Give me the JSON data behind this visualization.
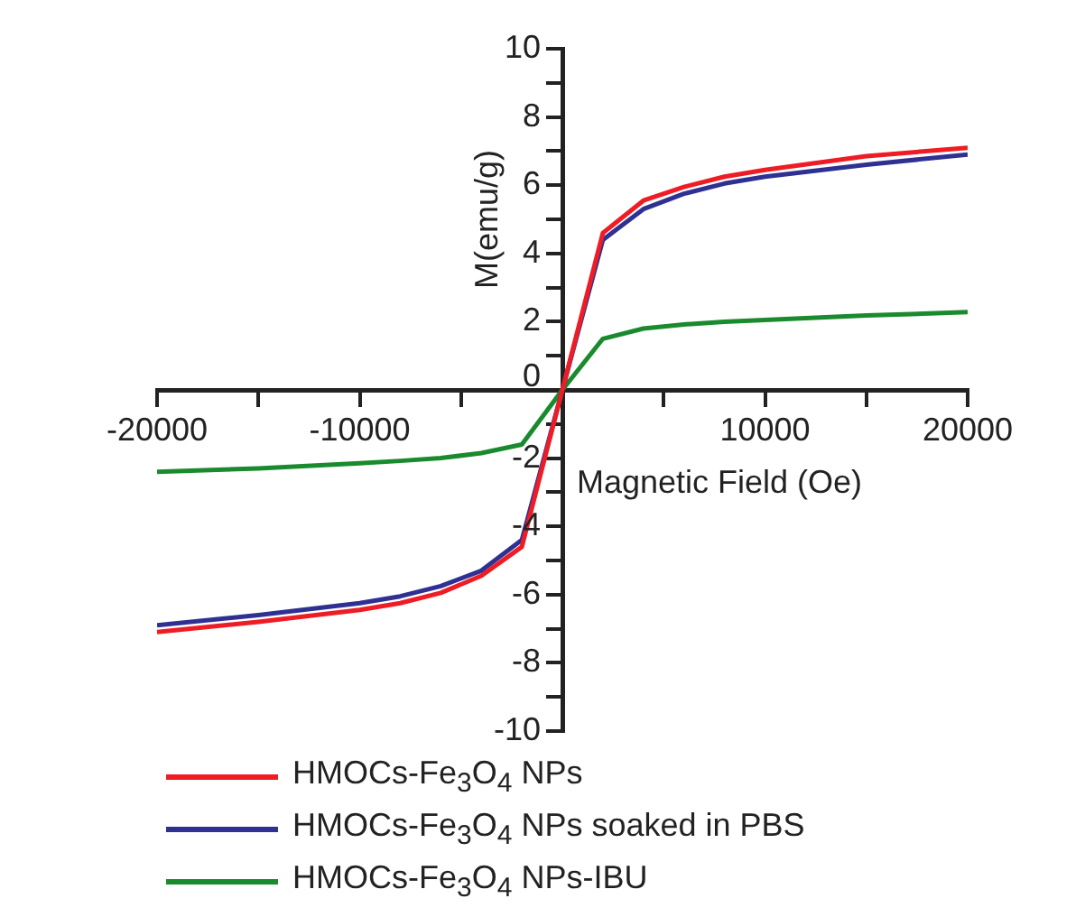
{
  "chart_data": {
    "type": "line",
    "xlabel": "Magnetic Field (Oe)",
    "ylabel": "M(emu/g)",
    "x": [
      -20000,
      -15000,
      -10000,
      -8000,
      -6000,
      -4000,
      -2000,
      0,
      2000,
      4000,
      6000,
      8000,
      10000,
      15000,
      20000
    ],
    "series": [
      {
        "name": "HMOCs-Fe$_{3}$O$_{4}$ NPs",
        "color": "#ee1c24",
        "values": [
          -7.1,
          -6.8,
          -6.45,
          -6.25,
          -5.95,
          -5.45,
          -4.6,
          0,
          4.6,
          5.55,
          5.95,
          6.25,
          6.45,
          6.85,
          7.1
        ]
      },
      {
        "name": "HMOCs-Fe$_{3}$O$_{4}$ NPs soaked in PBS",
        "color": "#2e3192",
        "values": [
          -6.9,
          -6.6,
          -6.25,
          -6.05,
          -5.75,
          -5.3,
          -4.4,
          0,
          4.4,
          5.3,
          5.75,
          6.05,
          6.25,
          6.6,
          6.9
        ]
      },
      {
        "name": "HMOCs-Fe$_{3}$O$_{4}$ NPs-IBU",
        "color": "#1a8a2e",
        "values": [
          -2.4,
          -2.3,
          -2.15,
          -2.08,
          -2.0,
          -1.85,
          -1.6,
          0,
          1.5,
          1.8,
          1.92,
          2.0,
          2.05,
          2.18,
          2.28
        ]
      }
    ],
    "xlim": [
      -20000,
      20000
    ],
    "xticks": [
      -20000,
      {
        "value": -15000,
        "label": null
      },
      -10000,
      {
        "value": -5000,
        "label": null
      },
      {
        "value": 0,
        "label": null
      },
      {
        "value": 5000,
        "label": null
      },
      10000,
      {
        "value": 15000,
        "label": null
      },
      20000
    ],
    "ylim": [
      -10,
      10
    ],
    "yticks": [
      -10,
      {
        "value": -9,
        "label": null
      },
      -8,
      {
        "value": -7,
        "label": null
      },
      -6,
      {
        "value": -5,
        "label": null
      },
      -4,
      {
        "value": -3,
        "label": null
      },
      -2,
      {
        "value": -1,
        "label": null
      },
      0,
      {
        "value": 1,
        "label": null
      },
      2,
      {
        "value": 3,
        "label": null
      },
      4,
      {
        "value": 5,
        "label": null
      },
      6,
      {
        "value": 7,
        "label": null
      },
      8,
      {
        "value": 9,
        "label": null
      },
      10
    ],
    "grid": false,
    "legend": "bottom",
    "marker": "none",
    "line_style": "solid"
  }
}
